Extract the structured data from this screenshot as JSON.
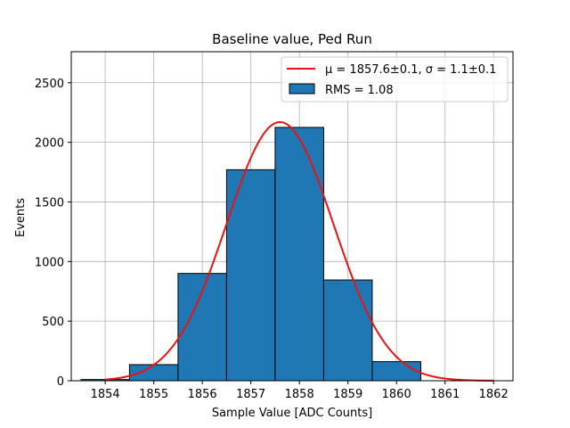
{
  "chart_data": {
    "type": "bar",
    "title": "Baseline value, Ped Run",
    "xlabel": "Sample Value [ADC Counts]",
    "ylabel": "Events",
    "xlim": [
      1853.3,
      1862.4
    ],
    "ylim": [
      0,
      2760
    ],
    "xticks": [
      1854,
      1855,
      1856,
      1857,
      1858,
      1859,
      1860,
      1861,
      1862
    ],
    "yticks": [
      0,
      500,
      1000,
      1500,
      2000,
      2500
    ],
    "grid": true,
    "legend_position": "top-right",
    "bins": [
      {
        "left": 1853.5,
        "right": 1854.5,
        "count": 10
      },
      {
        "left": 1854.5,
        "right": 1855.5,
        "count": 135
      },
      {
        "left": 1855.5,
        "right": 1856.5,
        "count": 900
      },
      {
        "left": 1856.5,
        "right": 1857.5,
        "count": 1770
      },
      {
        "left": 1857.5,
        "right": 1858.5,
        "count": 2125
      },
      {
        "left": 1858.5,
        "right": 1859.5,
        "count": 845
      },
      {
        "left": 1859.5,
        "right": 1860.5,
        "count": 160
      }
    ],
    "fit": {
      "mu": 1857.6,
      "sigma": 1.1,
      "amplitude": 2170,
      "x_range": [
        1854,
        1862
      ]
    },
    "legend": [
      {
        "label": "μ = 1857.6±0.1, σ = 1.1±0.1",
        "kind": "line",
        "color": "#ee1111"
      },
      {
        "label": "RMS = 1.08",
        "kind": "patch",
        "color": "#1f77b4"
      }
    ],
    "colors": {
      "bar_fill": "#1f77b4",
      "bar_edge": "#000000",
      "fit_line": "#ee1111",
      "grid": "#b0b0b0"
    }
  }
}
